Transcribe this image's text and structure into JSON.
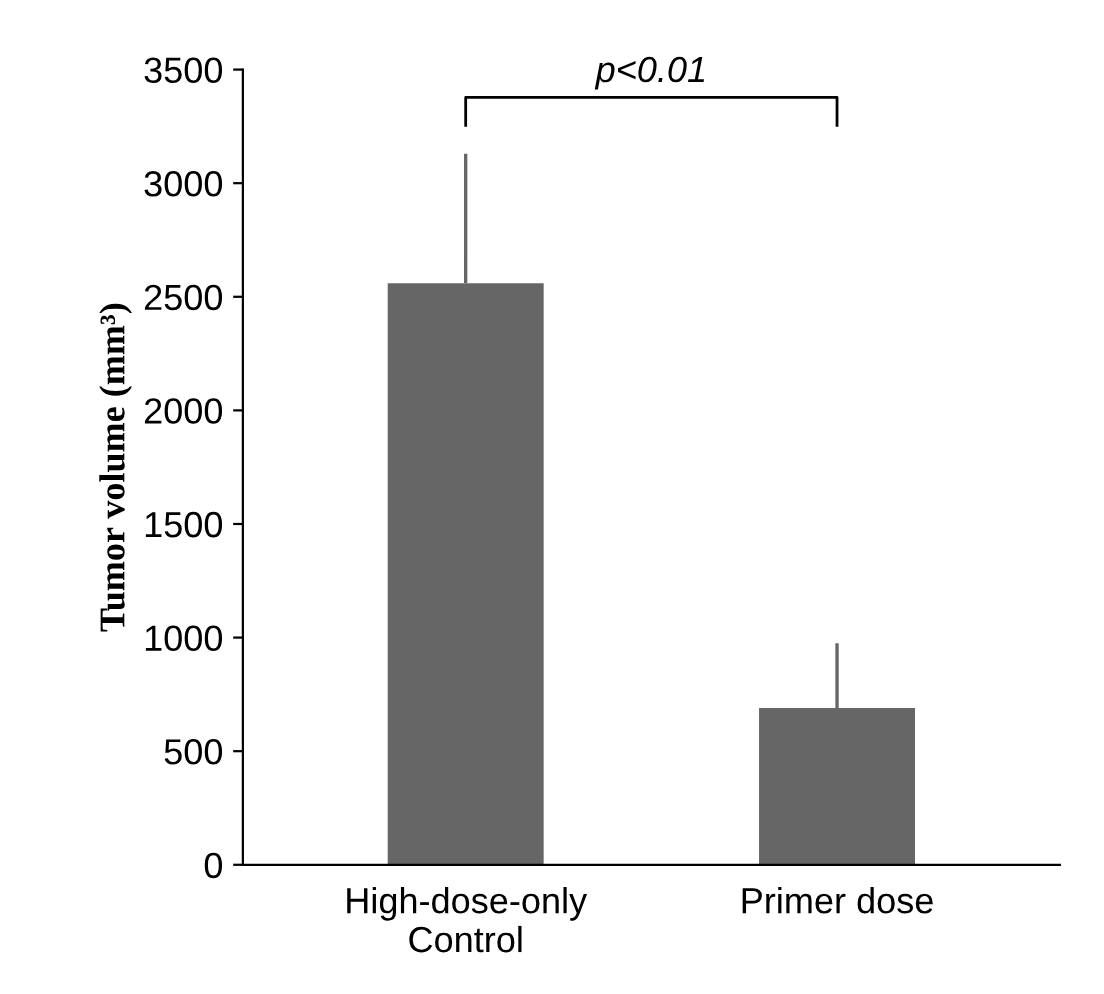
{
  "chart_data": {
    "type": "bar",
    "ylabel": "Tumor volume (mm³)",
    "categories": [
      "High-dose-only\nControl",
      "Primer dose"
    ],
    "values": [
      2560,
      690
    ],
    "errors": [
      [
        2560,
        3130
      ],
      [
        690,
        975
      ]
    ],
    "color": "#666666",
    "ylim": [
      0,
      3500
    ],
    "yticks": [
      0,
      500,
      1000,
      1500,
      2000,
      2500,
      3000,
      3500
    ],
    "grid": false,
    "annotations": [
      "p<0.01"
    ]
  }
}
